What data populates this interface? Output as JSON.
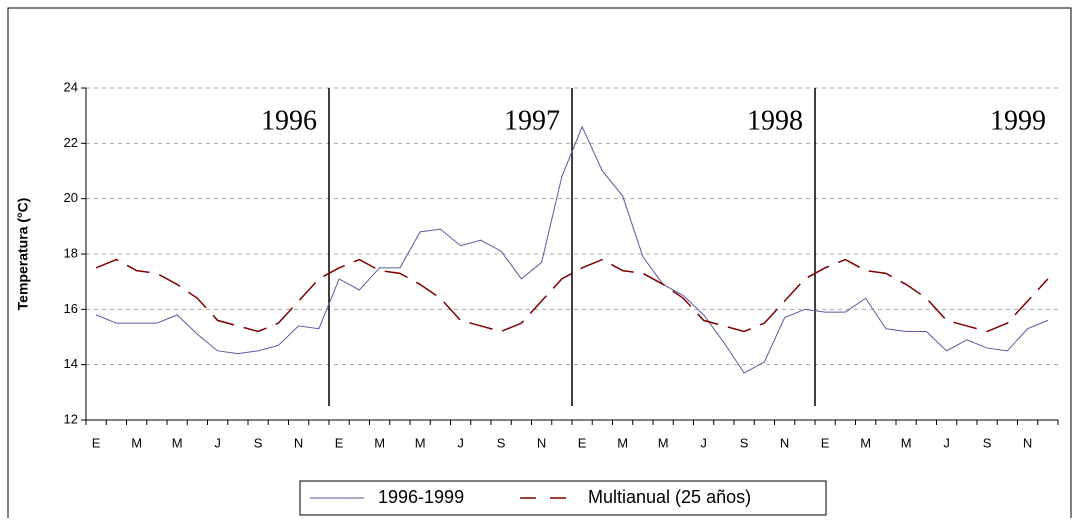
{
  "chart_data": {
    "type": "line",
    "y_label": "Temperatura (°C)",
    "categories": [
      "E",
      null,
      "M",
      null,
      "M",
      null,
      "J",
      null,
      "S",
      null,
      "N",
      null,
      "E",
      null,
      "M",
      null,
      "M",
      null,
      "J",
      null,
      "S",
      null,
      "N",
      null,
      "E",
      null,
      "M",
      null,
      "M",
      null,
      "J",
      null,
      "S",
      null,
      "N",
      null,
      "E",
      null,
      "M",
      null,
      "M",
      null,
      "J",
      null,
      "S",
      null,
      "N",
      null
    ],
    "year_labels": [
      "1996",
      "1997",
      "1998",
      "1999"
    ],
    "series": [
      {
        "name": "1996-1999",
        "color": "#5a5aa0",
        "dashed": false,
        "values": [
          15.8,
          15.5,
          15.5,
          15.5,
          15.8,
          15.1,
          14.5,
          14.4,
          14.5,
          14.7,
          15.4,
          15.3,
          17.1,
          16.7,
          17.5,
          17.5,
          18.8,
          18.9,
          18.3,
          18.5,
          18.1,
          17.1,
          17.7,
          20.8,
          22.6,
          21.0,
          20.1,
          17.9,
          16.9,
          16.5,
          15.8,
          14.8,
          13.7,
          14.1,
          15.7,
          16.0,
          15.9,
          15.9,
          16.4,
          15.3,
          15.2,
          15.2,
          14.5,
          14.9,
          14.6,
          14.5,
          15.3,
          15.6
        ]
      },
      {
        "name": "Multianual (25 años)",
        "color": "#800000",
        "dashed": true,
        "values": [
          17.5,
          17.8,
          17.4,
          17.3,
          16.9,
          16.4,
          15.6,
          15.4,
          15.2,
          15.5,
          16.3,
          17.1,
          17.5,
          17.8,
          17.4,
          17.3,
          16.9,
          16.4,
          15.6,
          15.4,
          15.2,
          15.5,
          16.3,
          17.1,
          17.5,
          17.8,
          17.4,
          17.3,
          16.9,
          16.4,
          15.6,
          15.4,
          15.2,
          15.5,
          16.3,
          17.1,
          17.5,
          17.8,
          17.4,
          17.3,
          16.9,
          16.4,
          15.6,
          15.4,
          15.2,
          15.5,
          16.3,
          17.1
        ]
      }
    ],
    "ylim": [
      12,
      24
    ],
    "yticks": [
      12,
      14,
      16,
      18,
      20,
      22,
      24
    ],
    "grid": true
  }
}
